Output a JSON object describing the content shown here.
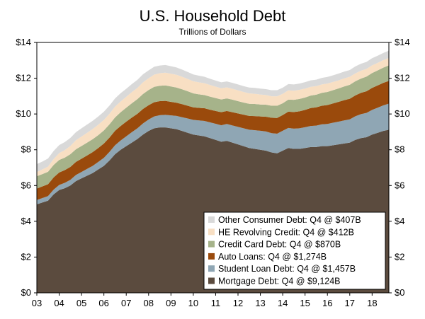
{
  "chart_data": {
    "type": "area",
    "title": "U.S. Household Debt",
    "subtitle": "Trillions of Dollars",
    "xlabel": "",
    "ylabel": "",
    "x_tick_labels": [
      "03",
      "04",
      "05",
      "06",
      "07",
      "08",
      "09",
      "10",
      "11",
      "12",
      "13",
      "14",
      "15",
      "16",
      "17",
      "18"
    ],
    "x_tick_years": [
      2003,
      2004,
      2005,
      2006,
      2007,
      2008,
      2009,
      2010,
      2011,
      2012,
      2013,
      2014,
      2015,
      2016,
      2017,
      2018
    ],
    "x": [
      2003.0,
      2003.25,
      2003.5,
      2003.75,
      2004.0,
      2004.25,
      2004.5,
      2004.75,
      2005.0,
      2005.25,
      2005.5,
      2005.75,
      2006.0,
      2006.25,
      2006.5,
      2006.75,
      2007.0,
      2007.25,
      2007.5,
      2007.75,
      2008.0,
      2008.25,
      2008.5,
      2008.75,
      2009.0,
      2009.25,
      2009.5,
      2009.75,
      2010.0,
      2010.25,
      2010.5,
      2010.75,
      2011.0,
      2011.25,
      2011.5,
      2011.75,
      2012.0,
      2012.25,
      2012.5,
      2012.75,
      2013.0,
      2013.25,
      2013.5,
      2013.75,
      2014.0,
      2014.25,
      2014.5,
      2014.75,
      2015.0,
      2015.25,
      2015.5,
      2015.75,
      2016.0,
      2016.25,
      2016.5,
      2016.75,
      2017.0,
      2017.25,
      2017.5,
      2017.75,
      2018.0,
      2018.25,
      2018.5,
      2018.75
    ],
    "y_tick_labels": [
      "$0",
      "$2",
      "$4",
      "$6",
      "$8",
      "$10",
      "$12",
      "$14"
    ],
    "ylim": [
      0,
      14
    ],
    "xlim": [
      2003.0,
      2018.75
    ],
    "grid": false,
    "legend_position": "bottom-right",
    "series": [
      {
        "name": "Mortgage Debt: Q4 @ $9,124B",
        "color": "#5b4b3e",
        "values": [
          4.95,
          5.05,
          5.15,
          5.5,
          5.75,
          5.85,
          6.0,
          6.25,
          6.4,
          6.55,
          6.7,
          6.9,
          7.1,
          7.4,
          7.75,
          8.0,
          8.2,
          8.4,
          8.6,
          8.85,
          9.05,
          9.2,
          9.25,
          9.25,
          9.2,
          9.15,
          9.05,
          8.95,
          8.85,
          8.8,
          8.75,
          8.65,
          8.55,
          8.45,
          8.5,
          8.4,
          8.3,
          8.2,
          8.1,
          8.05,
          8.0,
          7.95,
          7.85,
          7.8,
          7.95,
          8.1,
          8.05,
          8.05,
          8.1,
          8.15,
          8.15,
          8.2,
          8.2,
          8.25,
          8.3,
          8.35,
          8.4,
          8.55,
          8.65,
          8.7,
          8.85,
          8.95,
          9.05,
          9.12
        ]
      },
      {
        "name": "Student Loan Debt: Q4 @ $1,457B",
        "color": "#8fa6b4",
        "values": [
          0.24,
          0.25,
          0.26,
          0.27,
          0.28,
          0.3,
          0.32,
          0.34,
          0.36,
          0.38,
          0.4,
          0.42,
          0.45,
          0.48,
          0.5,
          0.52,
          0.55,
          0.58,
          0.6,
          0.62,
          0.64,
          0.66,
          0.68,
          0.7,
          0.72,
          0.74,
          0.77,
          0.8,
          0.82,
          0.84,
          0.86,
          0.88,
          0.9,
          0.92,
          0.94,
          0.96,
          0.98,
          1.0,
          1.02,
          1.04,
          1.06,
          1.07,
          1.08,
          1.1,
          1.11,
          1.12,
          1.13,
          1.15,
          1.16,
          1.18,
          1.2,
          1.22,
          1.24,
          1.26,
          1.27,
          1.29,
          1.3,
          1.32,
          1.34,
          1.36,
          1.38,
          1.4,
          1.43,
          1.457
        ]
      },
      {
        "name": "Auto Loans: Q4 @ $1,274B",
        "color": "#9a4a0c",
        "values": [
          0.64,
          0.65,
          0.66,
          0.68,
          0.7,
          0.71,
          0.72,
          0.73,
          0.74,
          0.75,
          0.77,
          0.78,
          0.8,
          0.8,
          0.81,
          0.81,
          0.82,
          0.82,
          0.81,
          0.81,
          0.8,
          0.8,
          0.79,
          0.78,
          0.76,
          0.74,
          0.73,
          0.71,
          0.7,
          0.7,
          0.71,
          0.71,
          0.72,
          0.73,
          0.73,
          0.74,
          0.75,
          0.76,
          0.77,
          0.79,
          0.8,
          0.83,
          0.86,
          0.88,
          0.88,
          0.91,
          0.93,
          0.95,
          0.97,
          1.0,
          1.02,
          1.04,
          1.06,
          1.08,
          1.11,
          1.13,
          1.15,
          1.17,
          1.19,
          1.21,
          1.23,
          1.25,
          1.26,
          1.274
        ]
      },
      {
        "name": "Credit Card Debt: Q4 @ $870B",
        "color": "#a6b38a",
        "values": [
          0.69,
          0.69,
          0.7,
          0.7,
          0.7,
          0.7,
          0.71,
          0.71,
          0.71,
          0.72,
          0.72,
          0.72,
          0.73,
          0.74,
          0.75,
          0.77,
          0.78,
          0.8,
          0.82,
          0.84,
          0.85,
          0.86,
          0.86,
          0.87,
          0.86,
          0.85,
          0.83,
          0.81,
          0.78,
          0.76,
          0.74,
          0.73,
          0.72,
          0.71,
          0.7,
          0.7,
          0.69,
          0.68,
          0.68,
          0.68,
          0.67,
          0.67,
          0.67,
          0.68,
          0.66,
          0.67,
          0.68,
          0.69,
          0.69,
          0.7,
          0.71,
          0.72,
          0.73,
          0.74,
          0.75,
          0.77,
          0.78,
          0.79,
          0.8,
          0.82,
          0.83,
          0.84,
          0.85,
          0.87
        ]
      },
      {
        "name": "HE Revolving Credit: Q4 @ $412B",
        "color": "#f8dfc3",
        "values": [
          0.24,
          0.26,
          0.29,
          0.33,
          0.38,
          0.42,
          0.46,
          0.5,
          0.53,
          0.55,
          0.57,
          0.58,
          0.59,
          0.59,
          0.6,
          0.6,
          0.61,
          0.62,
          0.63,
          0.65,
          0.66,
          0.68,
          0.7,
          0.71,
          0.71,
          0.71,
          0.7,
          0.69,
          0.68,
          0.67,
          0.66,
          0.65,
          0.64,
          0.63,
          0.62,
          0.61,
          0.6,
          0.59,
          0.58,
          0.57,
          0.56,
          0.54,
          0.53,
          0.53,
          0.53,
          0.52,
          0.51,
          0.51,
          0.5,
          0.49,
          0.48,
          0.47,
          0.47,
          0.46,
          0.45,
          0.45,
          0.45,
          0.44,
          0.44,
          0.43,
          0.43,
          0.42,
          0.42,
          0.412
        ]
      },
      {
        "name": "Other Consumer Debt: Q4 @ $407B",
        "color": "#d9d9d9",
        "values": [
          0.44,
          0.44,
          0.45,
          0.45,
          0.45,
          0.45,
          0.45,
          0.45,
          0.46,
          0.46,
          0.46,
          0.46,
          0.46,
          0.46,
          0.46,
          0.46,
          0.45,
          0.45,
          0.45,
          0.45,
          0.44,
          0.44,
          0.43,
          0.43,
          0.42,
          0.41,
          0.4,
          0.39,
          0.38,
          0.37,
          0.36,
          0.35,
          0.34,
          0.33,
          0.33,
          0.33,
          0.33,
          0.33,
          0.33,
          0.33,
          0.33,
          0.33,
          0.34,
          0.34,
          0.34,
          0.35,
          0.35,
          0.35,
          0.36,
          0.36,
          0.36,
          0.37,
          0.37,
          0.37,
          0.38,
          0.38,
          0.38,
          0.39,
          0.39,
          0.39,
          0.4,
          0.4,
          0.4,
          0.407
        ]
      }
    ]
  }
}
